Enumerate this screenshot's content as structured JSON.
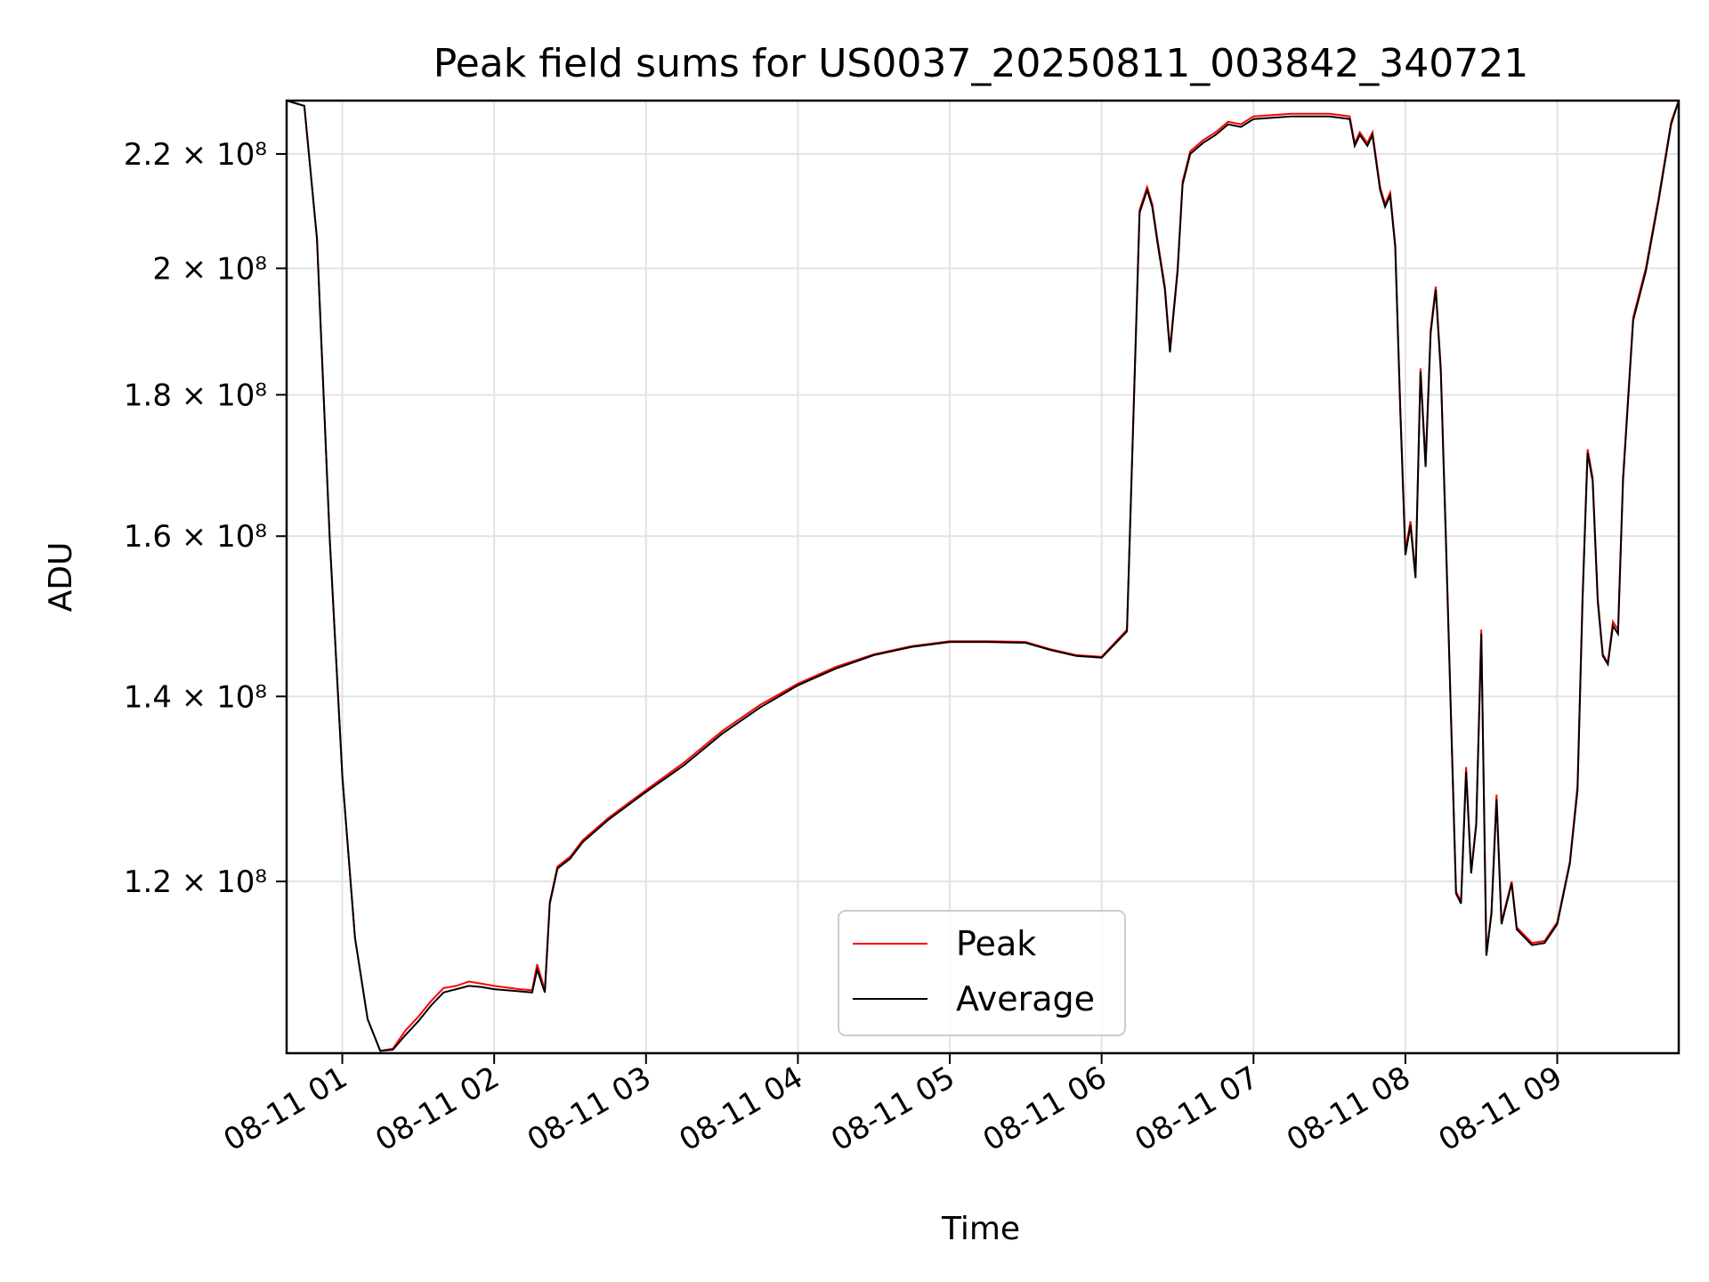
{
  "chart_data": {
    "type": "line",
    "title": "Peak field sums for US0037_20250811_003842_340721",
    "xlabel": "Time",
    "ylabel": "ADU",
    "y_scale": "log",
    "xlim": [
      "2025-08-11T00:38",
      "2025-08-11T09:48"
    ],
    "ylim": [
      104000000,
      230000000
    ],
    "grid": true,
    "legend_position": "lower-center",
    "x_ticks": [
      {
        "value": "2025-08-11T01:00",
        "label": "08-11 01"
      },
      {
        "value": "2025-08-11T02:00",
        "label": "08-11 02"
      },
      {
        "value": "2025-08-11T03:00",
        "label": "08-11 03"
      },
      {
        "value": "2025-08-11T04:00",
        "label": "08-11 04"
      },
      {
        "value": "2025-08-11T05:00",
        "label": "08-11 05"
      },
      {
        "value": "2025-08-11T06:00",
        "label": "08-11 06"
      },
      {
        "value": "2025-08-11T07:00",
        "label": "08-11 07"
      },
      {
        "value": "2025-08-11T08:00",
        "label": "08-11 08"
      },
      {
        "value": "2025-08-11T09:00",
        "label": "08-11 09"
      }
    ],
    "y_ticks": [
      {
        "value": 120000000,
        "label": "1.2 × 10⁸"
      },
      {
        "value": 140000000,
        "label": "1.4 × 10⁸"
      },
      {
        "value": 160000000,
        "label": "1.6 × 10⁸"
      },
      {
        "value": 180000000,
        "label": "1.8 × 10⁸"
      },
      {
        "value": 200000000,
        "label": "2 × 10⁸"
      },
      {
        "value": 220000000,
        "label": "2.2 × 10⁸"
      }
    ],
    "series": [
      {
        "name": "Peak",
        "color": "#ff0000",
        "x": [
          "2025-08-11T00:38",
          "2025-08-11T00:45",
          "2025-08-11T00:50",
          "2025-08-11T00:55",
          "2025-08-11T01:00",
          "2025-08-11T01:05",
          "2025-08-11T01:10",
          "2025-08-11T01:15",
          "2025-08-11T01:20",
          "2025-08-11T01:25",
          "2025-08-11T01:30",
          "2025-08-11T01:35",
          "2025-08-11T01:40",
          "2025-08-11T01:45",
          "2025-08-11T01:50",
          "2025-08-11T01:55",
          "2025-08-11T02:00",
          "2025-08-11T02:10",
          "2025-08-11T02:15",
          "2025-08-11T02:17",
          "2025-08-11T02:20",
          "2025-08-11T02:22",
          "2025-08-11T02:25",
          "2025-08-11T02:30",
          "2025-08-11T02:35",
          "2025-08-11T02:45",
          "2025-08-11T03:00",
          "2025-08-11T03:15",
          "2025-08-11T03:30",
          "2025-08-11T03:45",
          "2025-08-11T04:00",
          "2025-08-11T04:15",
          "2025-08-11T04:30",
          "2025-08-11T04:45",
          "2025-08-11T05:00",
          "2025-08-11T05:15",
          "2025-08-11T05:30",
          "2025-08-11T05:40",
          "2025-08-11T05:50",
          "2025-08-11T06:00",
          "2025-08-11T06:10",
          "2025-08-11T06:15",
          "2025-08-11T06:18",
          "2025-08-11T06:20",
          "2025-08-11T06:22",
          "2025-08-11T06:25",
          "2025-08-11T06:27",
          "2025-08-11T06:30",
          "2025-08-11T06:32",
          "2025-08-11T06:35",
          "2025-08-11T06:40",
          "2025-08-11T06:45",
          "2025-08-11T06:50",
          "2025-08-11T06:55",
          "2025-08-11T07:00",
          "2025-08-11T07:15",
          "2025-08-11T07:30",
          "2025-08-11T07:38",
          "2025-08-11T07:40",
          "2025-08-11T07:42",
          "2025-08-11T07:45",
          "2025-08-11T07:47",
          "2025-08-11T07:50",
          "2025-08-11T07:52",
          "2025-08-11T07:54",
          "2025-08-11T07:56",
          "2025-08-11T07:58",
          "2025-08-11T08:00",
          "2025-08-11T08:02",
          "2025-08-11T08:04",
          "2025-08-11T08:06",
          "2025-08-11T08:08",
          "2025-08-11T08:10",
          "2025-08-11T08:12",
          "2025-08-11T08:14",
          "2025-08-11T08:16",
          "2025-08-11T08:20",
          "2025-08-11T08:22",
          "2025-08-11T08:24",
          "2025-08-11T08:26",
          "2025-08-11T08:28",
          "2025-08-11T08:30",
          "2025-08-11T08:32",
          "2025-08-11T08:34",
          "2025-08-11T08:36",
          "2025-08-11T08:38",
          "2025-08-11T08:40",
          "2025-08-11T08:42",
          "2025-08-11T08:44",
          "2025-08-11T08:46",
          "2025-08-11T08:48",
          "2025-08-11T08:50",
          "2025-08-11T08:55",
          "2025-08-11T09:00",
          "2025-08-11T09:05",
          "2025-08-11T09:08",
          "2025-08-11T09:10",
          "2025-08-11T09:12",
          "2025-08-11T09:14",
          "2025-08-11T09:16",
          "2025-08-11T09:18",
          "2025-08-11T09:20",
          "2025-08-11T09:22",
          "2025-08-11T09:24",
          "2025-08-11T09:26",
          "2025-08-11T09:30",
          "2025-08-11T09:35",
          "2025-08-11T09:40",
          "2025-08-11T09:45",
          "2025-08-11T09:48"
        ],
        "values": [
          230000000,
          229000000,
          205000000,
          160000000,
          131000000,
          114500000,
          107000000,
          104200000,
          104400000,
          106000000,
          107200000,
          108600000,
          109800000,
          110000000,
          110400000,
          110200000,
          110000000,
          109700000,
          109600000,
          112000000,
          109600000,
          118000000,
          121500000,
          122500000,
          124200000,
          126500000,
          129500000,
          132500000,
          136000000,
          139000000,
          141500000,
          143500000,
          145000000,
          146000000,
          146600000,
          146600000,
          146500000,
          145600000,
          144900000,
          144700000,
          148000000,
          210000000,
          214000000,
          211000000,
          205000000,
          197000000,
          187000000,
          200000000,
          215000000,
          220500000,
          222500000,
          224000000,
          226000000,
          225500000,
          227000000,
          227500000,
          227500000,
          227000000,
          222000000,
          224000000,
          222000000,
          224000000,
          214000000,
          211000000,
          213000000,
          204000000,
          178000000,
          158000000,
          162000000,
          155000000,
          184000000,
          170000000,
          190000000,
          197000000,
          184000000,
          160000000,
          119000000,
          118000000,
          132000000,
          121000000,
          126000000,
          148000000,
          113000000,
          117000000,
          129000000,
          116000000,
          118000000,
          120000000,
          115500000,
          115000000,
          114500000,
          114000000,
          114200000,
          116000000,
          122000000,
          130000000,
          152000000,
          172000000,
          168000000,
          152000000,
          145000000,
          144000000,
          149000000,
          148000000,
          168000000,
          192000000,
          200000000,
          212000000,
          226000000,
          230000000
        ]
      },
      {
        "name": "Average",
        "color": "#000000",
        "x": [
          "2025-08-11T00:38",
          "2025-08-11T00:45",
          "2025-08-11T00:50",
          "2025-08-11T00:55",
          "2025-08-11T01:00",
          "2025-08-11T01:05",
          "2025-08-11T01:10",
          "2025-08-11T01:15",
          "2025-08-11T01:20",
          "2025-08-11T01:25",
          "2025-08-11T01:30",
          "2025-08-11T01:35",
          "2025-08-11T01:40",
          "2025-08-11T01:45",
          "2025-08-11T01:50",
          "2025-08-11T01:55",
          "2025-08-11T02:00",
          "2025-08-11T02:10",
          "2025-08-11T02:15",
          "2025-08-11T02:17",
          "2025-08-11T02:20",
          "2025-08-11T02:22",
          "2025-08-11T02:25",
          "2025-08-11T02:30",
          "2025-08-11T02:35",
          "2025-08-11T02:45",
          "2025-08-11T03:00",
          "2025-08-11T03:15",
          "2025-08-11T03:30",
          "2025-08-11T03:45",
          "2025-08-11T04:00",
          "2025-08-11T04:15",
          "2025-08-11T04:30",
          "2025-08-11T04:45",
          "2025-08-11T05:00",
          "2025-08-11T05:15",
          "2025-08-11T05:30",
          "2025-08-11T05:40",
          "2025-08-11T05:50",
          "2025-08-11T06:00",
          "2025-08-11T06:10",
          "2025-08-11T06:15",
          "2025-08-11T06:18",
          "2025-08-11T06:20",
          "2025-08-11T06:22",
          "2025-08-11T06:25",
          "2025-08-11T06:27",
          "2025-08-11T06:30",
          "2025-08-11T06:32",
          "2025-08-11T06:35",
          "2025-08-11T06:40",
          "2025-08-11T06:45",
          "2025-08-11T06:50",
          "2025-08-11T06:55",
          "2025-08-11T07:00",
          "2025-08-11T07:15",
          "2025-08-11T07:30",
          "2025-08-11T07:38",
          "2025-08-11T07:40",
          "2025-08-11T07:42",
          "2025-08-11T07:45",
          "2025-08-11T07:47",
          "2025-08-11T07:50",
          "2025-08-11T07:52",
          "2025-08-11T07:54",
          "2025-08-11T07:56",
          "2025-08-11T07:58",
          "2025-08-11T08:00",
          "2025-08-11T08:02",
          "2025-08-11T08:04",
          "2025-08-11T08:06",
          "2025-08-11T08:08",
          "2025-08-11T08:10",
          "2025-08-11T08:12",
          "2025-08-11T08:14",
          "2025-08-11T08:16",
          "2025-08-11T08:20",
          "2025-08-11T08:22",
          "2025-08-11T08:24",
          "2025-08-11T08:26",
          "2025-08-11T08:28",
          "2025-08-11T08:30",
          "2025-08-11T08:32",
          "2025-08-11T08:34",
          "2025-08-11T08:36",
          "2025-08-11T08:38",
          "2025-08-11T08:40",
          "2025-08-11T08:42",
          "2025-08-11T08:44",
          "2025-08-11T08:46",
          "2025-08-11T08:48",
          "2025-08-11T08:50",
          "2025-08-11T08:55",
          "2025-08-11T09:00",
          "2025-08-11T09:05",
          "2025-08-11T09:08",
          "2025-08-11T09:10",
          "2025-08-11T09:12",
          "2025-08-11T09:14",
          "2025-08-11T09:16",
          "2025-08-11T09:18",
          "2025-08-11T09:20",
          "2025-08-11T09:22",
          "2025-08-11T09:24",
          "2025-08-11T09:26",
          "2025-08-11T09:30",
          "2025-08-11T09:35",
          "2025-08-11T09:40",
          "2025-08-11T09:45",
          "2025-08-11T09:48"
        ],
        "values": [
          230000000,
          229000000,
          205000000,
          160000000,
          131000000,
          114500000,
          107000000,
          104200000,
          104300000,
          105600000,
          106800000,
          108200000,
          109400000,
          109700000,
          110000000,
          109900000,
          109700000,
          109500000,
          109400000,
          111500000,
          109400000,
          117800000,
          121300000,
          122300000,
          124000000,
          126300000,
          129300000,
          132200000,
          135700000,
          138700000,
          141300000,
          143300000,
          144900000,
          145900000,
          146500000,
          146500000,
          146400000,
          145500000,
          144800000,
          144600000,
          147800000,
          209500000,
          213500000,
          210500000,
          204500000,
          196500000,
          186500000,
          199500000,
          214500000,
          220000000,
          222000000,
          223500000,
          225500000,
          225000000,
          226500000,
          227000000,
          227000000,
          226500000,
          221500000,
          223500000,
          221500000,
          223500000,
          213500000,
          210500000,
          212500000,
          203500000,
          177500000,
          157500000,
          161500000,
          154500000,
          183500000,
          169500000,
          189500000,
          196500000,
          183500000,
          159500000,
          118800000,
          117800000,
          131500000,
          120800000,
          125800000,
          147500000,
          112800000,
          116800000,
          128500000,
          115800000,
          117800000,
          119800000,
          115300000,
          114800000,
          114300000,
          113800000,
          114000000,
          115800000,
          121800000,
          129500000,
          151500000,
          171500000,
          167500000,
          151500000,
          144800000,
          143800000,
          148500000,
          147500000,
          167500000,
          191500000,
          199500000,
          211500000,
          225500000,
          230000000
        ]
      }
    ]
  }
}
